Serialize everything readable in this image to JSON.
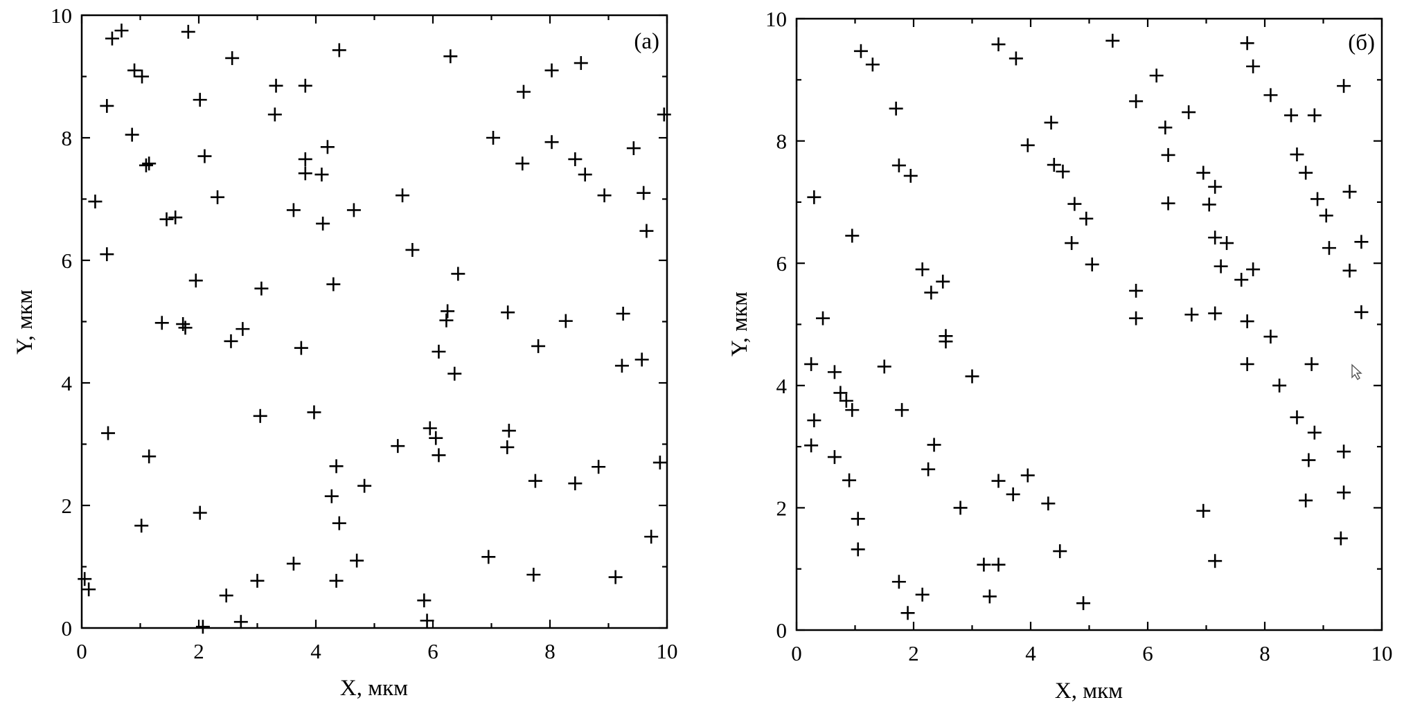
{
  "chart_data": [
    {
      "type": "scatter",
      "panel_label": "(а)",
      "xlabel": "X, мкм",
      "ylabel": "Y, мкм",
      "xlim": [
        0,
        10
      ],
      "ylim": [
        0,
        10
      ],
      "xticks": [
        "0",
        "2",
        "4",
        "6",
        "8",
        "10"
      ],
      "yticks": [
        "0",
        "2",
        "4",
        "6",
        "8",
        "10"
      ],
      "grid": false,
      "marker": "plus",
      "points": [
        [
          0.52,
          9.62
        ],
        [
          0.68,
          9.75
        ],
        [
          1.82,
          9.73
        ],
        [
          2.57,
          9.3
        ],
        [
          4.4,
          9.43
        ],
        [
          6.3,
          9.33
        ],
        [
          0.9,
          9.1
        ],
        [
          1.03,
          9.0
        ],
        [
          3.32,
          8.85
        ],
        [
          3.82,
          8.85
        ],
        [
          8.03,
          9.1
        ],
        [
          8.53,
          9.22
        ],
        [
          0.43,
          8.52
        ],
        [
          2.02,
          8.62
        ],
        [
          3.3,
          8.38
        ],
        [
          7.55,
          8.75
        ],
        [
          9.95,
          8.38
        ],
        [
          0.86,
          8.05
        ],
        [
          4.2,
          7.85
        ],
        [
          7.03,
          8.0
        ],
        [
          8.03,
          7.93
        ],
        [
          9.43,
          7.83
        ],
        [
          1.1,
          7.55
        ],
        [
          1.15,
          7.58
        ],
        [
          2.1,
          7.7
        ],
        [
          3.82,
          7.65
        ],
        [
          3.82,
          7.42
        ],
        [
          4.1,
          7.4
        ],
        [
          7.53,
          7.58
        ],
        [
          8.43,
          7.65
        ],
        [
          8.6,
          7.4
        ],
        [
          0.23,
          6.96
        ],
        [
          2.32,
          7.03
        ],
        [
          5.48,
          7.06
        ],
        [
          8.93,
          7.06
        ],
        [
          9.6,
          7.1
        ],
        [
          1.45,
          6.67
        ],
        [
          1.6,
          6.7
        ],
        [
          3.62,
          6.82
        ],
        [
          4.12,
          6.6
        ],
        [
          4.65,
          6.82
        ],
        [
          9.65,
          6.48
        ],
        [
          0.43,
          6.1
        ],
        [
          5.65,
          6.17
        ],
        [
          6.43,
          5.78
        ],
        [
          1.95,
          5.67
        ],
        [
          3.07,
          5.54
        ],
        [
          4.3,
          5.61
        ],
        [
          1.37,
          4.98
        ],
        [
          1.73,
          4.96
        ],
        [
          1.77,
          4.9
        ],
        [
          6.25,
          5.17
        ],
        [
          6.23,
          5.02
        ],
        [
          7.28,
          5.15
        ],
        [
          8.27,
          5.01
        ],
        [
          9.25,
          5.13
        ],
        [
          2.55,
          4.68
        ],
        [
          2.75,
          4.88
        ],
        [
          3.75,
          4.57
        ],
        [
          6.1,
          4.51
        ],
        [
          6.37,
          4.15
        ],
        [
          7.8,
          4.6
        ],
        [
          9.23,
          4.28
        ],
        [
          9.57,
          4.38
        ],
        [
          0.45,
          3.18
        ],
        [
          3.05,
          3.46
        ],
        [
          3.97,
          3.52
        ],
        [
          5.95,
          3.26
        ],
        [
          6.05,
          3.1
        ],
        [
          7.3,
          3.22
        ],
        [
          1.15,
          2.8
        ],
        [
          4.35,
          2.64
        ],
        [
          5.4,
          2.97
        ],
        [
          6.1,
          2.82
        ],
        [
          7.27,
          2.95
        ],
        [
          4.27,
          2.15
        ],
        [
          4.83,
          2.32
        ],
        [
          7.75,
          2.4
        ],
        [
          8.43,
          2.36
        ],
        [
          8.83,
          2.63
        ],
        [
          9.88,
          2.7
        ],
        [
          1.02,
          1.67
        ],
        [
          2.02,
          1.88
        ],
        [
          4.4,
          1.71
        ],
        [
          9.73,
          1.49
        ],
        [
          0.05,
          0.8
        ],
        [
          0.12,
          0.63
        ],
        [
          3.62,
          1.05
        ],
        [
          4.7,
          1.1
        ],
        [
          6.95,
          1.16
        ],
        [
          7.72,
          0.87
        ],
        [
          9.12,
          0.83
        ],
        [
          2.47,
          0.53
        ],
        [
          3.0,
          0.77
        ],
        [
          4.35,
          0.77
        ],
        [
          5.85,
          0.45
        ],
        [
          5.9,
          0.12
        ],
        [
          2.07,
          0.02
        ],
        [
          2.72,
          0.1
        ]
      ]
    },
    {
      "type": "scatter",
      "panel_label": "(б)",
      "xlabel": "X, мкм",
      "ylabel": "Y, мкм",
      "xlim": [
        0,
        10
      ],
      "ylim": [
        0,
        10
      ],
      "xticks": [
        "0",
        "2",
        "4",
        "6",
        "8",
        "10"
      ],
      "yticks": [
        "0",
        "2",
        "4",
        "6",
        "8",
        "10"
      ],
      "grid": false,
      "marker": "plus",
      "points": [
        [
          1.1,
          9.47
        ],
        [
          1.3,
          9.25
        ],
        [
          3.45,
          9.58
        ],
        [
          3.75,
          9.35
        ],
        [
          5.4,
          9.64
        ],
        [
          7.7,
          9.6
        ],
        [
          7.8,
          9.22
        ],
        [
          6.15,
          9.07
        ],
        [
          9.35,
          8.9
        ],
        [
          1.7,
          8.53
        ],
        [
          5.8,
          8.65
        ],
        [
          6.7,
          8.47
        ],
        [
          4.35,
          8.3
        ],
        [
          6.3,
          8.22
        ],
        [
          8.1,
          8.75
        ],
        [
          8.45,
          8.42
        ],
        [
          8.85,
          8.42
        ],
        [
          3.95,
          7.93
        ],
        [
          6.35,
          7.77
        ],
        [
          8.55,
          7.78
        ],
        [
          1.75,
          7.6
        ],
        [
          1.95,
          7.43
        ],
        [
          4.4,
          7.61
        ],
        [
          4.55,
          7.5
        ],
        [
          6.95,
          7.48
        ],
        [
          7.15,
          7.25
        ],
        [
          8.7,
          7.48
        ],
        [
          9.45,
          7.17
        ],
        [
          0.3,
          7.08
        ],
        [
          4.75,
          6.97
        ],
        [
          6.35,
          6.98
        ],
        [
          7.05,
          6.96
        ],
        [
          8.9,
          7.05
        ],
        [
          4.95,
          6.73
        ],
        [
          9.05,
          6.78
        ],
        [
          0.95,
          6.45
        ],
        [
          4.7,
          6.33
        ],
        [
          7.15,
          6.42
        ],
        [
          7.35,
          6.33
        ],
        [
          9.1,
          6.25
        ],
        [
          9.65,
          6.35
        ],
        [
          5.05,
          5.98
        ],
        [
          7.25,
          5.95
        ],
        [
          2.15,
          5.9
        ],
        [
          7.6,
          5.73
        ],
        [
          7.8,
          5.9
        ],
        [
          9.45,
          5.88
        ],
        [
          2.5,
          5.7
        ],
        [
          2.3,
          5.52
        ],
        [
          5.8,
          5.55
        ],
        [
          0.45,
          5.1
        ],
        [
          5.8,
          5.1
        ],
        [
          6.75,
          5.16
        ],
        [
          7.15,
          5.18
        ],
        [
          7.7,
          5.05
        ],
        [
          9.65,
          5.2
        ],
        [
          2.55,
          4.81
        ],
        [
          2.55,
          4.72
        ],
        [
          8.1,
          4.8
        ],
        [
          0.25,
          4.35
        ],
        [
          7.7,
          4.35
        ],
        [
          8.8,
          4.35
        ],
        [
          1.5,
          4.31
        ],
        [
          0.65,
          4.22
        ],
        [
          3.0,
          4.15
        ],
        [
          0.75,
          3.88
        ],
        [
          0.85,
          3.75
        ],
        [
          0.95,
          3.6
        ],
        [
          1.8,
          3.6
        ],
        [
          8.25,
          4.0
        ],
        [
          0.3,
          3.43
        ],
        [
          8.55,
          3.48
        ],
        [
          8.85,
          3.23
        ],
        [
          0.25,
          3.02
        ],
        [
          2.35,
          3.03
        ],
        [
          0.65,
          2.83
        ],
        [
          8.75,
          2.78
        ],
        [
          9.35,
          2.92
        ],
        [
          2.25,
          2.63
        ],
        [
          3.95,
          2.53
        ],
        [
          3.45,
          2.44
        ],
        [
          0.9,
          2.45
        ],
        [
          3.7,
          2.22
        ],
        [
          9.35,
          2.25
        ],
        [
          8.7,
          2.12
        ],
        [
          2.8,
          2.0
        ],
        [
          4.3,
          2.07
        ],
        [
          6.95,
          1.95
        ],
        [
          1.05,
          1.82
        ],
        [
          9.3,
          1.5
        ],
        [
          1.05,
          1.32
        ],
        [
          4.5,
          1.29
        ],
        [
          3.2,
          1.07
        ],
        [
          3.45,
          1.07
        ],
        [
          7.15,
          1.13
        ],
        [
          1.75,
          0.79
        ],
        [
          2.15,
          0.58
        ],
        [
          3.3,
          0.55
        ],
        [
          4.9,
          0.44
        ],
        [
          1.9,
          0.28
        ]
      ]
    }
  ]
}
